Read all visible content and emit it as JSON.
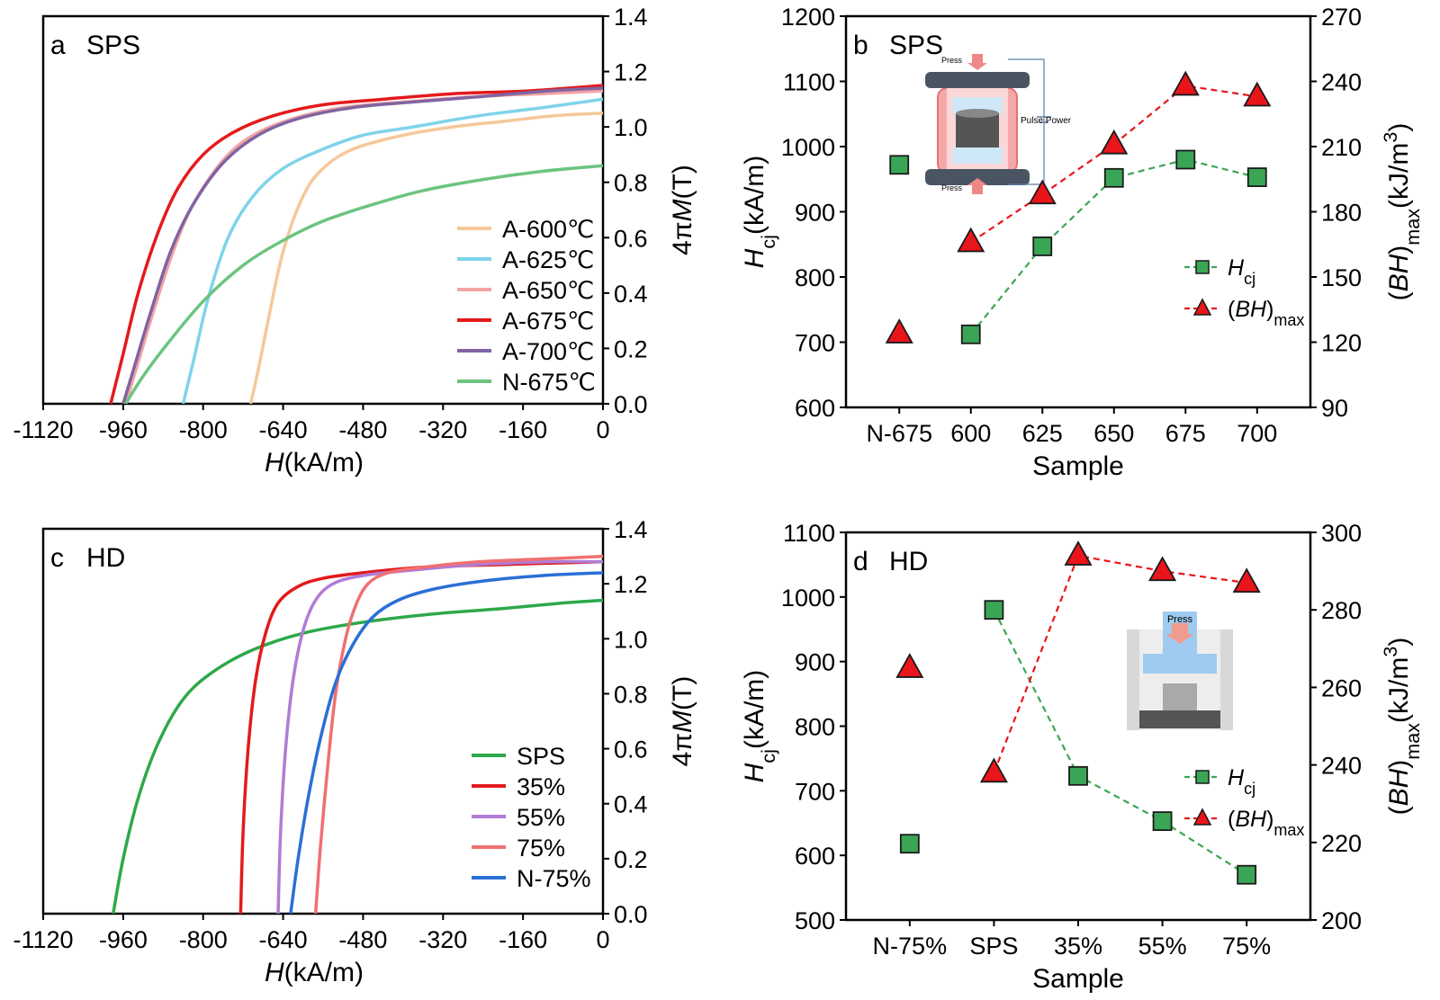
{
  "chart_data": [
    {
      "id": "a",
      "type": "line",
      "panel_label": "a",
      "title": "SPS",
      "xlabel": "H(kA/m)",
      "xlabel_italic": "H",
      "xlabel_rest": "(kA/m)",
      "ylabel_pre": "4π",
      "ylabel_italic": "M",
      "ylabel_post": "(T)",
      "xlim": [
        -1120,
        0
      ],
      "ylim": [
        0,
        1.4
      ],
      "xticks": [
        -1120,
        -960,
        -800,
        -640,
        -480,
        -320,
        -160,
        0
      ],
      "yticks": [
        0.0,
        0.2,
        0.4,
        0.6,
        0.8,
        1.0,
        1.2,
        1.4
      ],
      "ytick_labels": [
        "0.0",
        "0.2",
        "0.4",
        "0.6",
        "0.8",
        "1.0",
        "1.2",
        "1.4"
      ],
      "y_axis_side": "right",
      "legend_position": "lower-right",
      "series": [
        {
          "name": "A-600℃",
          "color": "#f5c89a",
          "points": [
            [
              -705,
              0
            ],
            [
              -690,
              0.12
            ],
            [
              -670,
              0.3
            ],
            [
              -640,
              0.55
            ],
            [
              -600,
              0.75
            ],
            [
              -560,
              0.85
            ],
            [
              -500,
              0.92
            ],
            [
              -400,
              0.97
            ],
            [
              -300,
              1.0
            ],
            [
              -200,
              1.02
            ],
            [
              -100,
              1.04
            ],
            [
              0,
              1.05
            ]
          ]
        },
        {
          "name": "A-625℃",
          "color": "#7fd3ea",
          "points": [
            [
              -840,
              0
            ],
            [
              -820,
              0.15
            ],
            [
              -790,
              0.38
            ],
            [
              -750,
              0.6
            ],
            [
              -700,
              0.75
            ],
            [
              -640,
              0.85
            ],
            [
              -560,
              0.92
            ],
            [
              -480,
              0.97
            ],
            [
              -380,
              1.0
            ],
            [
              -250,
              1.04
            ],
            [
              -120,
              1.07
            ],
            [
              0,
              1.1
            ]
          ]
        },
        {
          "name": "A-650℃",
          "color": "#f2a3a3",
          "points": [
            [
              -955,
              0
            ],
            [
              -930,
              0.15
            ],
            [
              -900,
              0.33
            ],
            [
              -860,
              0.55
            ],
            [
              -820,
              0.72
            ],
            [
              -760,
              0.88
            ],
            [
              -700,
              0.97
            ],
            [
              -620,
              1.03
            ],
            [
              -520,
              1.07
            ],
            [
              -400,
              1.09
            ],
            [
              -250,
              1.11
            ],
            [
              -120,
              1.12
            ],
            [
              0,
              1.13
            ]
          ]
        },
        {
          "name": "A-675℃",
          "color": "#e31a1c",
          "points": [
            [
              -985,
              0
            ],
            [
              -960,
              0.18
            ],
            [
              -930,
              0.4
            ],
            [
              -890,
              0.62
            ],
            [
              -850,
              0.78
            ],
            [
              -800,
              0.9
            ],
            [
              -740,
              0.98
            ],
            [
              -660,
              1.04
            ],
            [
              -560,
              1.08
            ],
            [
              -440,
              1.1
            ],
            [
              -300,
              1.12
            ],
            [
              -150,
              1.13
            ],
            [
              0,
              1.15
            ]
          ]
        },
        {
          "name": "A-700℃",
          "color": "#8064a2",
          "points": [
            [
              -960,
              0
            ],
            [
              -935,
              0.15
            ],
            [
              -905,
              0.33
            ],
            [
              -865,
              0.55
            ],
            [
              -820,
              0.72
            ],
            [
              -760,
              0.87
            ],
            [
              -690,
              0.97
            ],
            [
              -610,
              1.03
            ],
            [
              -500,
              1.07
            ],
            [
              -380,
              1.09
            ],
            [
              -240,
              1.11
            ],
            [
              -110,
              1.13
            ],
            [
              0,
              1.14
            ]
          ]
        },
        {
          "name": "N-675℃",
          "color": "#6cc47f",
          "points": [
            [
              -955,
              0
            ],
            [
              -920,
              0.1
            ],
            [
              -870,
              0.22
            ],
            [
              -800,
              0.37
            ],
            [
              -720,
              0.5
            ],
            [
              -640,
              0.59
            ],
            [
              -560,
              0.66
            ],
            [
              -460,
              0.72
            ],
            [
              -360,
              0.77
            ],
            [
              -240,
              0.81
            ],
            [
              -120,
              0.84
            ],
            [
              0,
              0.86
            ]
          ]
        }
      ]
    },
    {
      "id": "b",
      "type": "scatter",
      "panel_label": "b",
      "title": "SPS",
      "xlabel": "Sample",
      "categories": [
        "N-675",
        "600",
        "625",
        "650",
        "675",
        "700"
      ],
      "ylabel_left": "Hcj(kA/m)",
      "ylabel_right": "(BH)max(kJ/m3)",
      "ylim_left": [
        600,
        1200
      ],
      "yticks_left": [
        600,
        700,
        800,
        900,
        1000,
        1100,
        1200
      ],
      "ylim_right": [
        90,
        270
      ],
      "yticks_right": [
        90,
        120,
        150,
        180,
        210,
        240,
        270
      ],
      "legend_position": "lower-right",
      "legend_hcj": "Hcj",
      "legend_bh": "(BH)max",
      "series": [
        {
          "name": "Hcj",
          "axis": "left",
          "marker": "square",
          "color": "#3aa655",
          "line": "dashed",
          "values": [
            972,
            712,
            847,
            952,
            980,
            953
          ],
          "connect_from": 1
        },
        {
          "name": "(BH)max",
          "axis": "right",
          "marker": "triangle",
          "color": "#e8151b",
          "line": "dashed",
          "values": [
            124,
            166,
            188,
            211,
            238,
            233
          ],
          "connect_from": 1
        }
      ],
      "inset": {
        "press_top": "Press",
        "press_bottom": "Press",
        "power": "Pulse Power"
      }
    },
    {
      "id": "c",
      "type": "line",
      "panel_label": "c",
      "title": "HD",
      "xlabel": "H(kA/m)",
      "xlabel_italic": "H",
      "xlabel_rest": "(kA/m)",
      "ylabel_pre": "4π",
      "ylabel_italic": "M",
      "ylabel_post": "(T)",
      "xlim": [
        -1120,
        0
      ],
      "ylim": [
        0,
        1.4
      ],
      "xticks": [
        -1120,
        -960,
        -800,
        -640,
        -480,
        -320,
        -160,
        0
      ],
      "yticks": [
        0.0,
        0.2,
        0.4,
        0.6,
        0.8,
        1.0,
        1.2,
        1.4
      ],
      "ytick_labels": [
        "0.0",
        "0.2",
        "0.4",
        "0.6",
        "0.8",
        "1.0",
        "1.2",
        "1.4"
      ],
      "y_axis_side": "right",
      "legend_position": "lower-right",
      "series": [
        {
          "name": "SPS",
          "color": "#2ea84a",
          "points": [
            [
              -980,
              0
            ],
            [
              -960,
              0.2
            ],
            [
              -930,
              0.42
            ],
            [
              -890,
              0.62
            ],
            [
              -840,
              0.78
            ],
            [
              -780,
              0.88
            ],
            [
              -700,
              0.96
            ],
            [
              -600,
              1.02
            ],
            [
              -480,
              1.06
            ],
            [
              -340,
              1.09
            ],
            [
              -200,
              1.11
            ],
            [
              -80,
              1.13
            ],
            [
              0,
              1.14
            ]
          ]
        },
        {
          "name": "35%",
          "color": "#e31a1c",
          "points": [
            [
              -725,
              0
            ],
            [
              -720,
              0.3
            ],
            [
              -710,
              0.6
            ],
            [
              -695,
              0.85
            ],
            [
              -675,
              1.02
            ],
            [
              -650,
              1.13
            ],
            [
              -610,
              1.19
            ],
            [
              -560,
              1.22
            ],
            [
              -480,
              1.24
            ],
            [
              -360,
              1.26
            ],
            [
              -200,
              1.27
            ],
            [
              0,
              1.28
            ]
          ]
        },
        {
          "name": "55%",
          "color": "#b07cd6",
          "points": [
            [
              -650,
              0
            ],
            [
              -645,
              0.3
            ],
            [
              -635,
              0.6
            ],
            [
              -620,
              0.85
            ],
            [
              -600,
              1.03
            ],
            [
              -575,
              1.14
            ],
            [
              -540,
              1.2
            ],
            [
              -480,
              1.23
            ],
            [
              -380,
              1.25
            ],
            [
              -250,
              1.27
            ],
            [
              -100,
              1.28
            ],
            [
              0,
              1.28
            ]
          ]
        },
        {
          "name": "75%",
          "color": "#f07070",
          "points": [
            [
              -575,
              0
            ],
            [
              -565,
              0.25
            ],
            [
              -550,
              0.55
            ],
            [
              -535,
              0.8
            ],
            [
              -515,
              1.0
            ],
            [
              -495,
              1.12
            ],
            [
              -470,
              1.2
            ],
            [
              -430,
              1.24
            ],
            [
              -360,
              1.26
            ],
            [
              -250,
              1.28
            ],
            [
              -120,
              1.29
            ],
            [
              0,
              1.3
            ]
          ]
        },
        {
          "name": "N-75%",
          "color": "#2a6fd6",
          "points": [
            [
              -625,
              0
            ],
            [
              -610,
              0.2
            ],
            [
              -590,
              0.42
            ],
            [
              -565,
              0.64
            ],
            [
              -535,
              0.84
            ],
            [
              -500,
              0.98
            ],
            [
              -460,
              1.08
            ],
            [
              -410,
              1.14
            ],
            [
              -340,
              1.18
            ],
            [
              -240,
              1.21
            ],
            [
              -120,
              1.23
            ],
            [
              0,
              1.24
            ]
          ]
        }
      ]
    },
    {
      "id": "d",
      "type": "scatter",
      "panel_label": "d",
      "title": "HD",
      "xlabel": "Sample",
      "categories": [
        "N-75%",
        "SPS",
        "35%",
        "55%",
        "75%"
      ],
      "ylabel_left": "Hcj(kA/m)",
      "ylabel_right": "(BH)max(kJ/m3)",
      "ylim_left": [
        500,
        1100
      ],
      "yticks_left": [
        500,
        600,
        700,
        800,
        900,
        1000,
        1100
      ],
      "ylim_right": [
        200,
        300
      ],
      "yticks_right": [
        200,
        220,
        240,
        260,
        280,
        300
      ],
      "legend_position": "lower-right",
      "legend_hcj": "Hcj",
      "legend_bh": "(BH)max",
      "series": [
        {
          "name": "Hcj",
          "axis": "left",
          "marker": "square",
          "color": "#3aa655",
          "line": "dashed",
          "values": [
            618,
            980,
            723,
            653,
            570
          ],
          "connect_from": 1
        },
        {
          "name": "(BH)max",
          "axis": "right",
          "marker": "triangle",
          "color": "#e8151b",
          "line": "dashed",
          "values": [
            265,
            238,
            294,
            290,
            287
          ],
          "connect_from": 1
        }
      ],
      "inset": {
        "press": "Press"
      }
    }
  ]
}
